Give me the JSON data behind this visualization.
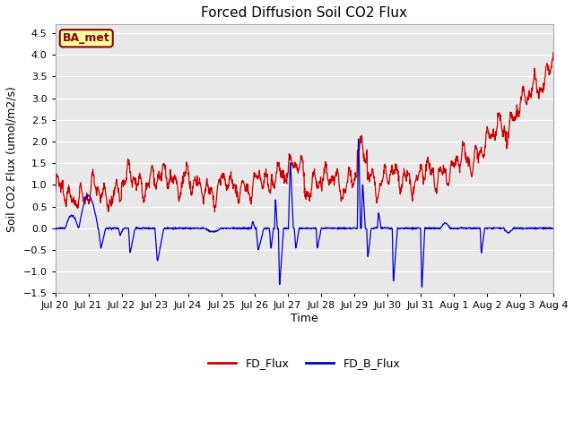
{
  "title": "Forced Diffusion Soil CO2 Flux",
  "xlabel": "Time",
  "ylabel": "Soil CO2 Flux (umol/m2/s)",
  "ylim": [
    -1.5,
    4.7
  ],
  "yticks": [
    -1.5,
    -1.0,
    -0.5,
    0.0,
    0.5,
    1.0,
    1.5,
    2.0,
    2.5,
    3.0,
    3.5,
    4.0,
    4.5
  ],
  "site_label": "BA_met",
  "site_label_bg": "#FFFFA0",
  "site_label_border": "#8B0000",
  "site_label_text": "#8B0000",
  "fd_flux_color": "#CC0000",
  "fd_b_flux_color": "#0000CC",
  "legend_fd_label": "FD_Flux",
  "legend_fdb_label": "FD_B_Flux",
  "background_color": "#E8E8E8",
  "xtick_labels": [
    "Jul 20",
    "Jul 21",
    "Jul 22",
    "Jul 23",
    "Jul 24",
    "Jul 25",
    "Jul 26",
    "Jul 27",
    "Jul 28",
    "Jul 29",
    "Jul 30",
    "Jul 31",
    "Aug 1",
    "Aug 2",
    "Aug 3",
    "Aug 4"
  ],
  "n_points": 1440,
  "n_days": 15
}
